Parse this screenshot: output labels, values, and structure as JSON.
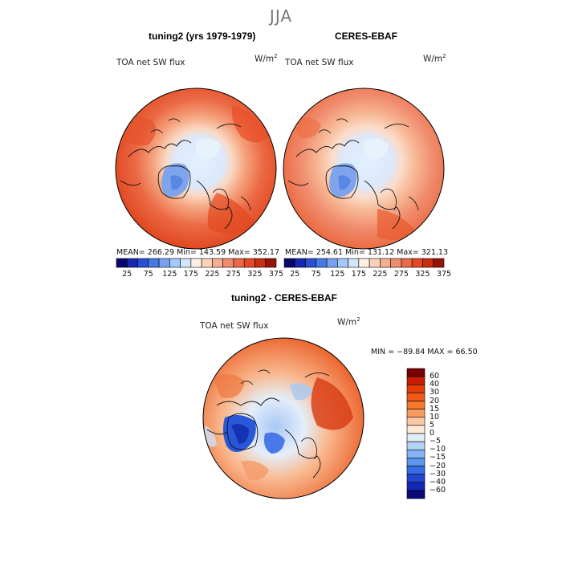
{
  "figure": {
    "season": "JJA",
    "left_title": "tuning2 (yrs 1979-1979)",
    "right_title": "CERES-EBAF",
    "diff_title": "tuning2 - CERES-EBAF"
  },
  "panel_top_left": {
    "field_label": "TOA net SW flux",
    "units_base": "W/m",
    "units_exp": "2",
    "stats": "MEAN= 266.29   Min= 143.59   Max= 352.17"
  },
  "panel_top_right": {
    "field_label": "TOA net SW flux",
    "units_base": "W/m",
    "units_exp": "2",
    "stats": "MEAN= 254.61   Min= 131.12   Max= 321.13"
  },
  "panel_diff": {
    "field_label": "TOA net SW flux",
    "units_base": "W/m",
    "units_exp": "2",
    "stats": "MIN = −89.84  MAX =   66.50"
  },
  "colorbar_abs": {
    "colors": [
      "#08086b",
      "#1428b4",
      "#2850d2",
      "#4678e6",
      "#78a0f0",
      "#a5c8fa",
      "#d2e6fa",
      "#fff0e6",
      "#fad2b9",
      "#f5af91",
      "#f08c6e",
      "#eb6946",
      "#e14a23",
      "#c82d0f",
      "#961405"
    ],
    "tick_labels": [
      "25",
      "75",
      "125",
      "175",
      "225",
      "275",
      "325",
      "375"
    ]
  },
  "colorbar_diff": {
    "colors": [
      "#780000",
      "#c81e00",
      "#e13c0a",
      "#f05a19",
      "#f5782d",
      "#f89b5f",
      "#fbc8a5",
      "#fdebd7",
      "#e1eefa",
      "#b4d2f5",
      "#87b4f0",
      "#5a96eb",
      "#376ee6",
      "#2346d2",
      "#1428b4",
      "#0a0a78"
    ],
    "tick_labels": [
      "60",
      "40",
      "30",
      "20",
      "15",
      "10",
      "5",
      "0",
      "−5",
      "−10",
      "−15",
      "−20",
      "−30",
      "−40",
      "−60"
    ]
  }
}
